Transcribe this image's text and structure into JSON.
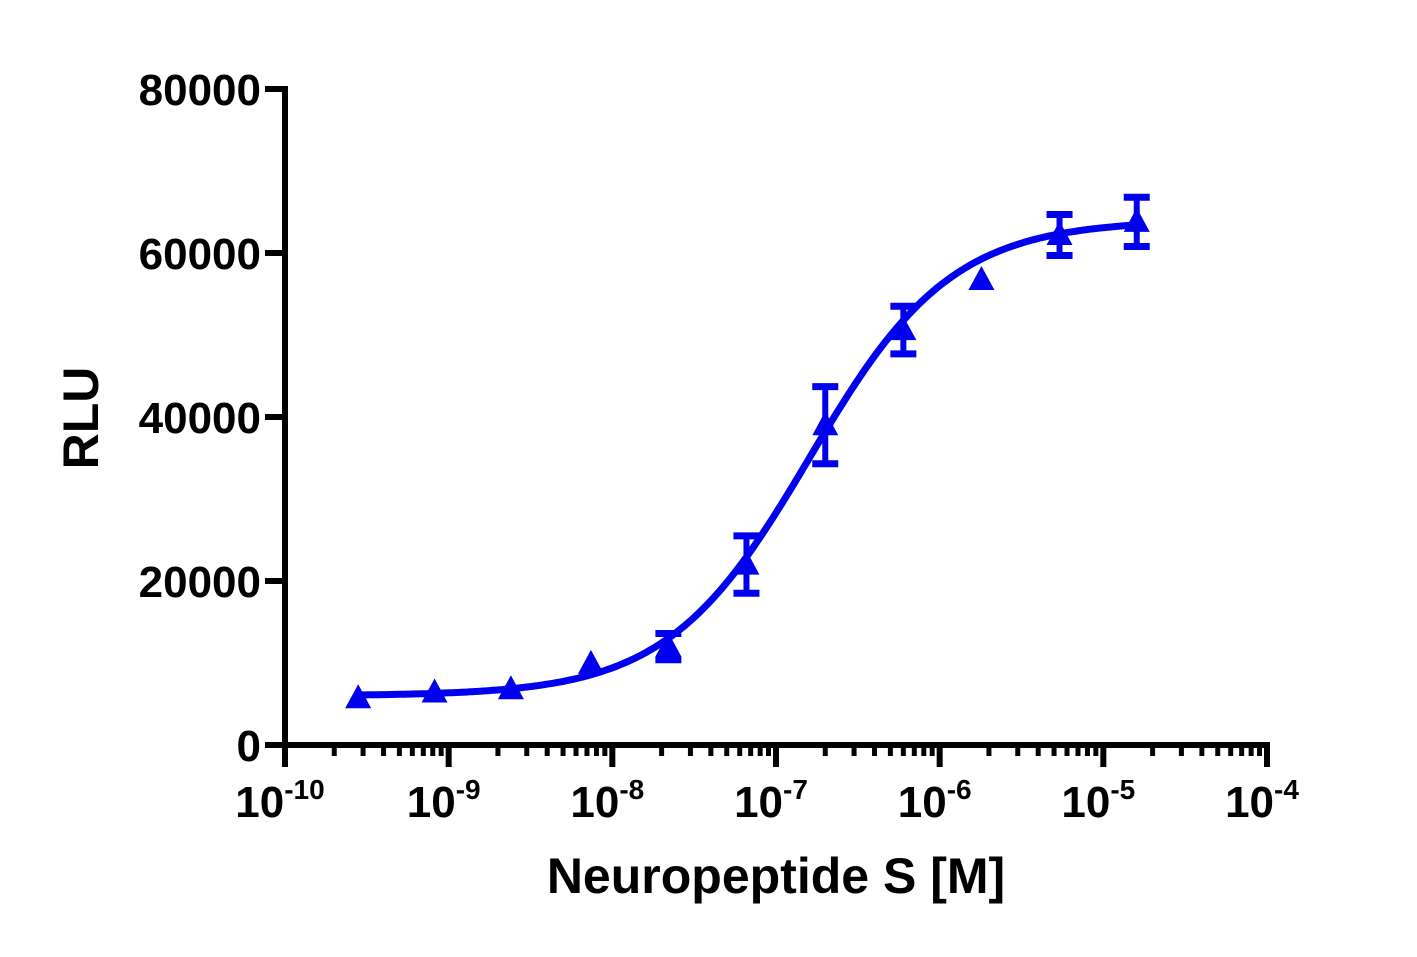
{
  "chart_data": {
    "type": "scatter",
    "title": "",
    "xlabel": "Neuropeptide S [M]",
    "ylabel": "RLU",
    "x_scale": "log",
    "xlim": [
      1e-10,
      0.0001
    ],
    "ylim": [
      0,
      80000
    ],
    "x_ticks": [
      {
        "base": "10",
        "exp": "-10"
      },
      {
        "base": "10",
        "exp": "-9"
      },
      {
        "base": "10",
        "exp": "-8"
      },
      {
        "base": "10",
        "exp": "-7"
      },
      {
        "base": "10",
        "exp": "-6"
      },
      {
        "base": "10",
        "exp": "-5"
      },
      {
        "base": "10",
        "exp": "-4"
      }
    ],
    "y_ticks": [
      "0",
      "20000",
      "40000",
      "60000",
      "80000"
    ],
    "grid": false,
    "color": "#0000ee",
    "marker": "triangle",
    "series": [
      {
        "x": [
          2.8e-10,
          8.2e-10,
          2.4e-09,
          7.4e-09,
          2.2e-08,
          6.6e-08,
          2e-07,
          6e-07,
          1.8e-06,
          5.4e-06,
          1.6e-05
        ],
        "y": [
          5700,
          6400,
          6800,
          9900,
          12000,
          22000,
          39000,
          50600,
          56700,
          62200,
          63800
        ],
        "error": [
          0,
          0,
          0,
          0,
          1600,
          3500,
          4700,
          2900,
          0,
          2500,
          3000
        ]
      }
    ],
    "fit": {
      "model": "four-parameter logistic",
      "bottom": 6000,
      "top": 64000,
      "ec50": 1.6e-07,
      "hill": 1.0
    }
  }
}
